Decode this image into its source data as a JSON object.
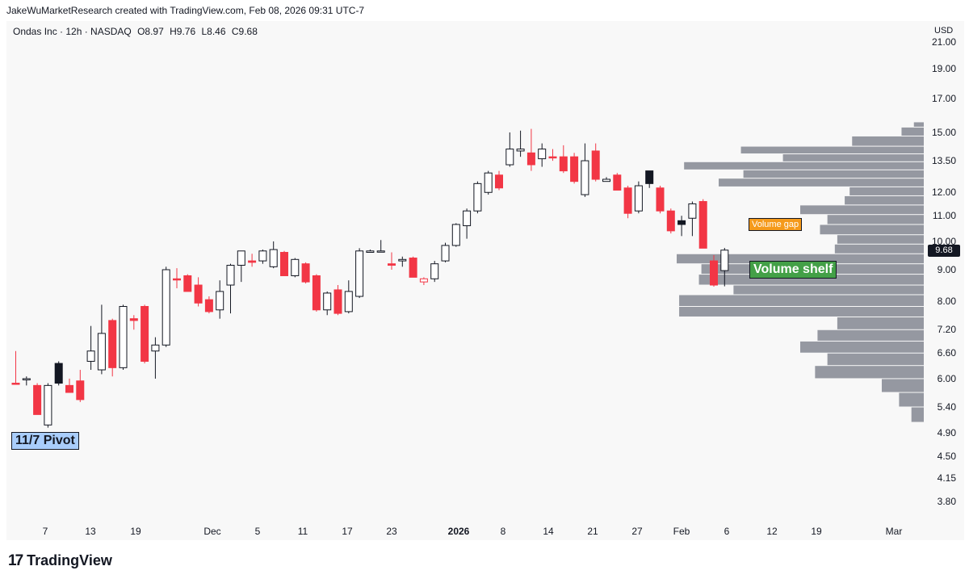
{
  "header": {
    "attribution": "JakeWuMarketResearch created with TradingView.com, Feb 08, 2026 09:31 UTC-7"
  },
  "symbol_info": {
    "name": "Ondas Inc · 12h · NASDAQ",
    "open": "O8.97",
    "high": "H9.76",
    "low": "L8.46",
    "close": "C9.68"
  },
  "currency": "USD",
  "last_price_label": "9.68",
  "annotations": {
    "pivot": "11/7 Pivot",
    "gap": "Volume gap",
    "shelf": "Volume shelf"
  },
  "footer": {
    "logo": "17",
    "brand": "TradingView"
  },
  "colors": {
    "up_fill": "#ffffff",
    "up_outline": "#131722",
    "down": "#f23645",
    "volume_profile": "#9598a1",
    "pivot_label": "#a9cdfb",
    "gap_label": "#f59a1b",
    "shelf_label": "#43a047"
  },
  "chart_data": {
    "type": "candlestick",
    "title": "Ondas Inc · 12h · NASDAQ",
    "y_axis": {
      "scale": "log",
      "ticks": [
        "21.00",
        "19.00",
        "17.00",
        "15.00",
        "13.50",
        "12.00",
        "11.00",
        "10.00",
        "9.00",
        "8.00",
        "7.20",
        "6.60",
        "6.00",
        "5.40",
        "4.90",
        "4.50",
        "4.15",
        "3.80"
      ]
    },
    "x_axis": {
      "ticks": [
        "7",
        "13",
        "19",
        "Dec",
        "5",
        "11",
        "17",
        "23",
        "2026",
        "8",
        "14",
        "21",
        "27",
        "Feb",
        "6",
        "12",
        "19",
        "Mar"
      ],
      "bold_ticks": [
        "2026"
      ]
    },
    "candles": [
      {
        "o": 5.9,
        "h": 6.65,
        "l": 5.9,
        "c": 5.9,
        "dir": "down"
      },
      {
        "o": 6.0,
        "h": 6.05,
        "l": 5.85,
        "c": 6.0,
        "dir": "up"
      },
      {
        "o": 5.85,
        "h": 5.9,
        "l": 5.25,
        "c": 5.25,
        "dir": "down"
      },
      {
        "o": 5.05,
        "h": 5.9,
        "l": 5.0,
        "c": 5.85,
        "dir": "up"
      },
      {
        "o": 5.9,
        "h": 6.4,
        "l": 5.85,
        "c": 6.35,
        "dir": "up_black"
      },
      {
        "o": 5.85,
        "h": 6.0,
        "l": 5.7,
        "c": 5.7,
        "dir": "down"
      },
      {
        "o": 5.95,
        "h": 6.2,
        "l": 5.5,
        "c": 5.55,
        "dir": "down"
      },
      {
        "o": 6.4,
        "h": 7.3,
        "l": 6.2,
        "c": 6.65,
        "dir": "up"
      },
      {
        "o": 6.2,
        "h": 7.9,
        "l": 6.1,
        "c": 7.1,
        "dir": "up"
      },
      {
        "o": 7.45,
        "h": 7.5,
        "l": 6.05,
        "c": 6.25,
        "dir": "down"
      },
      {
        "o": 6.25,
        "h": 7.9,
        "l": 6.2,
        "c": 7.85,
        "dir": "up"
      },
      {
        "o": 7.5,
        "h": 7.6,
        "l": 7.2,
        "c": 7.45,
        "dir": "down"
      },
      {
        "o": 7.85,
        "h": 7.9,
        "l": 6.35,
        "c": 6.4,
        "dir": "down"
      },
      {
        "o": 6.65,
        "h": 7.0,
        "l": 6.0,
        "c": 6.8,
        "dir": "up"
      },
      {
        "o": 6.8,
        "h": 9.1,
        "l": 6.75,
        "c": 9.0,
        "dir": "up"
      },
      {
        "o": 8.7,
        "h": 9.05,
        "l": 8.4,
        "c": 8.7,
        "dir": "down"
      },
      {
        "o": 8.8,
        "h": 8.85,
        "l": 8.35,
        "c": 8.3,
        "dir": "down"
      },
      {
        "o": 8.5,
        "h": 8.75,
        "l": 7.85,
        "c": 7.95,
        "dir": "down"
      },
      {
        "o": 8.05,
        "h": 8.15,
        "l": 7.65,
        "c": 7.7,
        "dir": "down"
      },
      {
        "o": 7.75,
        "h": 8.65,
        "l": 7.5,
        "c": 8.3,
        "dir": "up"
      },
      {
        "o": 8.5,
        "h": 9.2,
        "l": 7.65,
        "c": 9.15,
        "dir": "up"
      },
      {
        "o": 9.15,
        "h": 9.65,
        "l": 8.6,
        "c": 9.65,
        "dir": "up"
      },
      {
        "o": 9.3,
        "h": 9.55,
        "l": 9.1,
        "c": 9.25,
        "dir": "down"
      },
      {
        "o": 9.3,
        "h": 9.7,
        "l": 9.2,
        "c": 9.65,
        "dir": "up"
      },
      {
        "o": 9.7,
        "h": 10.0,
        "l": 9.05,
        "c": 9.1,
        "dir": "up"
      },
      {
        "o": 9.6,
        "h": 9.65,
        "l": 8.8,
        "c": 8.8,
        "dir": "down"
      },
      {
        "o": 8.8,
        "h": 9.4,
        "l": 8.75,
        "c": 9.35,
        "dir": "up"
      },
      {
        "o": 9.2,
        "h": 9.25,
        "l": 8.55,
        "c": 8.6,
        "dir": "down"
      },
      {
        "o": 8.8,
        "h": 8.85,
        "l": 7.7,
        "c": 7.75,
        "dir": "down"
      },
      {
        "o": 7.75,
        "h": 8.3,
        "l": 7.6,
        "c": 8.25,
        "dir": "up"
      },
      {
        "o": 8.35,
        "h": 8.5,
        "l": 7.6,
        "c": 7.65,
        "dir": "down"
      },
      {
        "o": 7.7,
        "h": 8.65,
        "l": 7.65,
        "c": 8.3,
        "dir": "up"
      },
      {
        "o": 8.15,
        "h": 9.75,
        "l": 8.1,
        "c": 9.65,
        "dir": "up"
      },
      {
        "o": 9.65,
        "h": 9.7,
        "l": 9.65,
        "c": 9.6,
        "dir": "up"
      },
      {
        "o": 9.65,
        "h": 10.05,
        "l": 9.6,
        "c": 9.65,
        "dir": "up"
      },
      {
        "o": 9.2,
        "h": 9.6,
        "l": 9.0,
        "c": 9.15,
        "dir": "down"
      },
      {
        "o": 9.35,
        "h": 9.45,
        "l": 9.1,
        "c": 9.3,
        "dir": "up"
      },
      {
        "o": 9.4,
        "h": 9.45,
        "l": 8.75,
        "c": 8.75,
        "dir": "down"
      },
      {
        "o": 8.6,
        "h": 8.75,
        "l": 8.5,
        "c": 8.7,
        "dir": "down_hollow"
      },
      {
        "o": 8.7,
        "h": 9.3,
        "l": 8.6,
        "c": 9.2,
        "dir": "up"
      },
      {
        "o": 9.3,
        "h": 9.95,
        "l": 9.25,
        "c": 9.85,
        "dir": "up"
      },
      {
        "o": 9.85,
        "h": 10.7,
        "l": 9.8,
        "c": 10.65,
        "dir": "up"
      },
      {
        "o": 10.6,
        "h": 11.3,
        "l": 10.1,
        "c": 11.2,
        "dir": "up"
      },
      {
        "o": 11.2,
        "h": 12.5,
        "l": 11.1,
        "c": 12.4,
        "dir": "up"
      },
      {
        "o": 12.0,
        "h": 13.0,
        "l": 11.9,
        "c": 12.9,
        "dir": "up"
      },
      {
        "o": 12.8,
        "h": 13.0,
        "l": 12.1,
        "c": 12.2,
        "dir": "down"
      },
      {
        "o": 13.3,
        "h": 15.0,
        "l": 13.2,
        "c": 14.1,
        "dir": "up"
      },
      {
        "o": 14.1,
        "h": 15.1,
        "l": 13.7,
        "c": 14.0,
        "dir": "up"
      },
      {
        "o": 13.9,
        "h": 15.2,
        "l": 13.0,
        "c": 13.3,
        "dir": "down"
      },
      {
        "o": 13.6,
        "h": 14.4,
        "l": 13.2,
        "c": 14.1,
        "dir": "up"
      },
      {
        "o": 13.7,
        "h": 14.1,
        "l": 13.5,
        "c": 13.65,
        "dir": "down"
      },
      {
        "o": 13.7,
        "h": 14.3,
        "l": 12.9,
        "c": 13.0,
        "dir": "down"
      },
      {
        "o": 13.7,
        "h": 13.9,
        "l": 12.4,
        "c": 12.5,
        "dir": "down"
      },
      {
        "o": 11.9,
        "h": 14.4,
        "l": 11.8,
        "c": 13.5,
        "dir": "up"
      },
      {
        "o": 14.0,
        "h": 14.4,
        "l": 12.5,
        "c": 12.6,
        "dir": "down"
      },
      {
        "o": 12.6,
        "h": 12.7,
        "l": 12.5,
        "c": 12.5,
        "dir": "up"
      },
      {
        "o": 12.8,
        "h": 12.9,
        "l": 12.1,
        "c": 12.1,
        "dir": "down"
      },
      {
        "o": 12.2,
        "h": 12.3,
        "l": 10.9,
        "c": 11.1,
        "dir": "down"
      },
      {
        "o": 11.2,
        "h": 12.5,
        "l": 11.1,
        "c": 12.3,
        "dir": "up"
      },
      {
        "o": 12.4,
        "h": 13.0,
        "l": 12.2,
        "c": 13.0,
        "dir": "up_black"
      },
      {
        "o": 12.2,
        "h": 12.3,
        "l": 11.1,
        "c": 11.2,
        "dir": "down"
      },
      {
        "o": 11.2,
        "h": 11.3,
        "l": 10.3,
        "c": 10.4,
        "dir": "down"
      },
      {
        "o": 10.8,
        "h": 11.0,
        "l": 10.2,
        "c": 10.65,
        "dir": "up_black"
      },
      {
        "o": 10.9,
        "h": 11.6,
        "l": 10.2,
        "c": 11.5,
        "dir": "up"
      },
      {
        "o": 11.6,
        "h": 11.7,
        "l": 9.75,
        "c": 9.75,
        "dir": "down"
      },
      {
        "o": 9.3,
        "h": 9.5,
        "l": 8.45,
        "c": 8.5,
        "dir": "down"
      },
      {
        "o": 8.97,
        "h": 9.76,
        "l": 8.46,
        "c": 9.68,
        "dir": "up"
      }
    ],
    "volume_profile": [
      {
        "low": 15.3,
        "high": 15.6,
        "rel": 0.04
      },
      {
        "low": 14.8,
        "high": 15.3,
        "rel": 0.09
      },
      {
        "low": 14.25,
        "high": 14.8,
        "rel": 0.29
      },
      {
        "low": 13.85,
        "high": 14.25,
        "rel": 0.74
      },
      {
        "low": 13.45,
        "high": 13.85,
        "rel": 0.57
      },
      {
        "low": 13.05,
        "high": 13.45,
        "rel": 0.97
      },
      {
        "low": 12.65,
        "high": 13.05,
        "rel": 0.73
      },
      {
        "low": 12.25,
        "high": 12.65,
        "rel": 0.83
      },
      {
        "low": 11.85,
        "high": 12.25,
        "rel": 0.3
      },
      {
        "low": 11.45,
        "high": 11.85,
        "rel": 0.32
      },
      {
        "low": 11.05,
        "high": 11.45,
        "rel": 0.5
      },
      {
        "low": 10.65,
        "high": 11.05,
        "rel": 0.39
      },
      {
        "low": 10.25,
        "high": 10.65,
        "rel": 0.42
      },
      {
        "low": 9.9,
        "high": 10.25,
        "rel": 0.35
      },
      {
        "low": 9.55,
        "high": 9.9,
        "rel": 0.36
      },
      {
        "low": 9.2,
        "high": 9.55,
        "rel": 1.0
      },
      {
        "low": 8.85,
        "high": 9.2,
        "rel": 0.9
      },
      {
        "low": 8.5,
        "high": 8.85,
        "rel": 0.91
      },
      {
        "low": 8.2,
        "high": 8.5,
        "rel": 0.77
      },
      {
        "low": 7.85,
        "high": 8.2,
        "rel": 0.99
      },
      {
        "low": 7.55,
        "high": 7.85,
        "rel": 0.99
      },
      {
        "low": 7.2,
        "high": 7.55,
        "rel": 0.35
      },
      {
        "low": 6.9,
        "high": 7.2,
        "rel": 0.43
      },
      {
        "low": 6.6,
        "high": 6.9,
        "rel": 0.5
      },
      {
        "low": 6.3,
        "high": 6.6,
        "rel": 0.39
      },
      {
        "low": 6.0,
        "high": 6.3,
        "rel": 0.44
      },
      {
        "low": 5.7,
        "high": 6.0,
        "rel": 0.17
      },
      {
        "low": 5.4,
        "high": 5.7,
        "rel": 0.1
      },
      {
        "low": 5.1,
        "high": 5.4,
        "rel": 0.05
      }
    ],
    "grid": false
  }
}
